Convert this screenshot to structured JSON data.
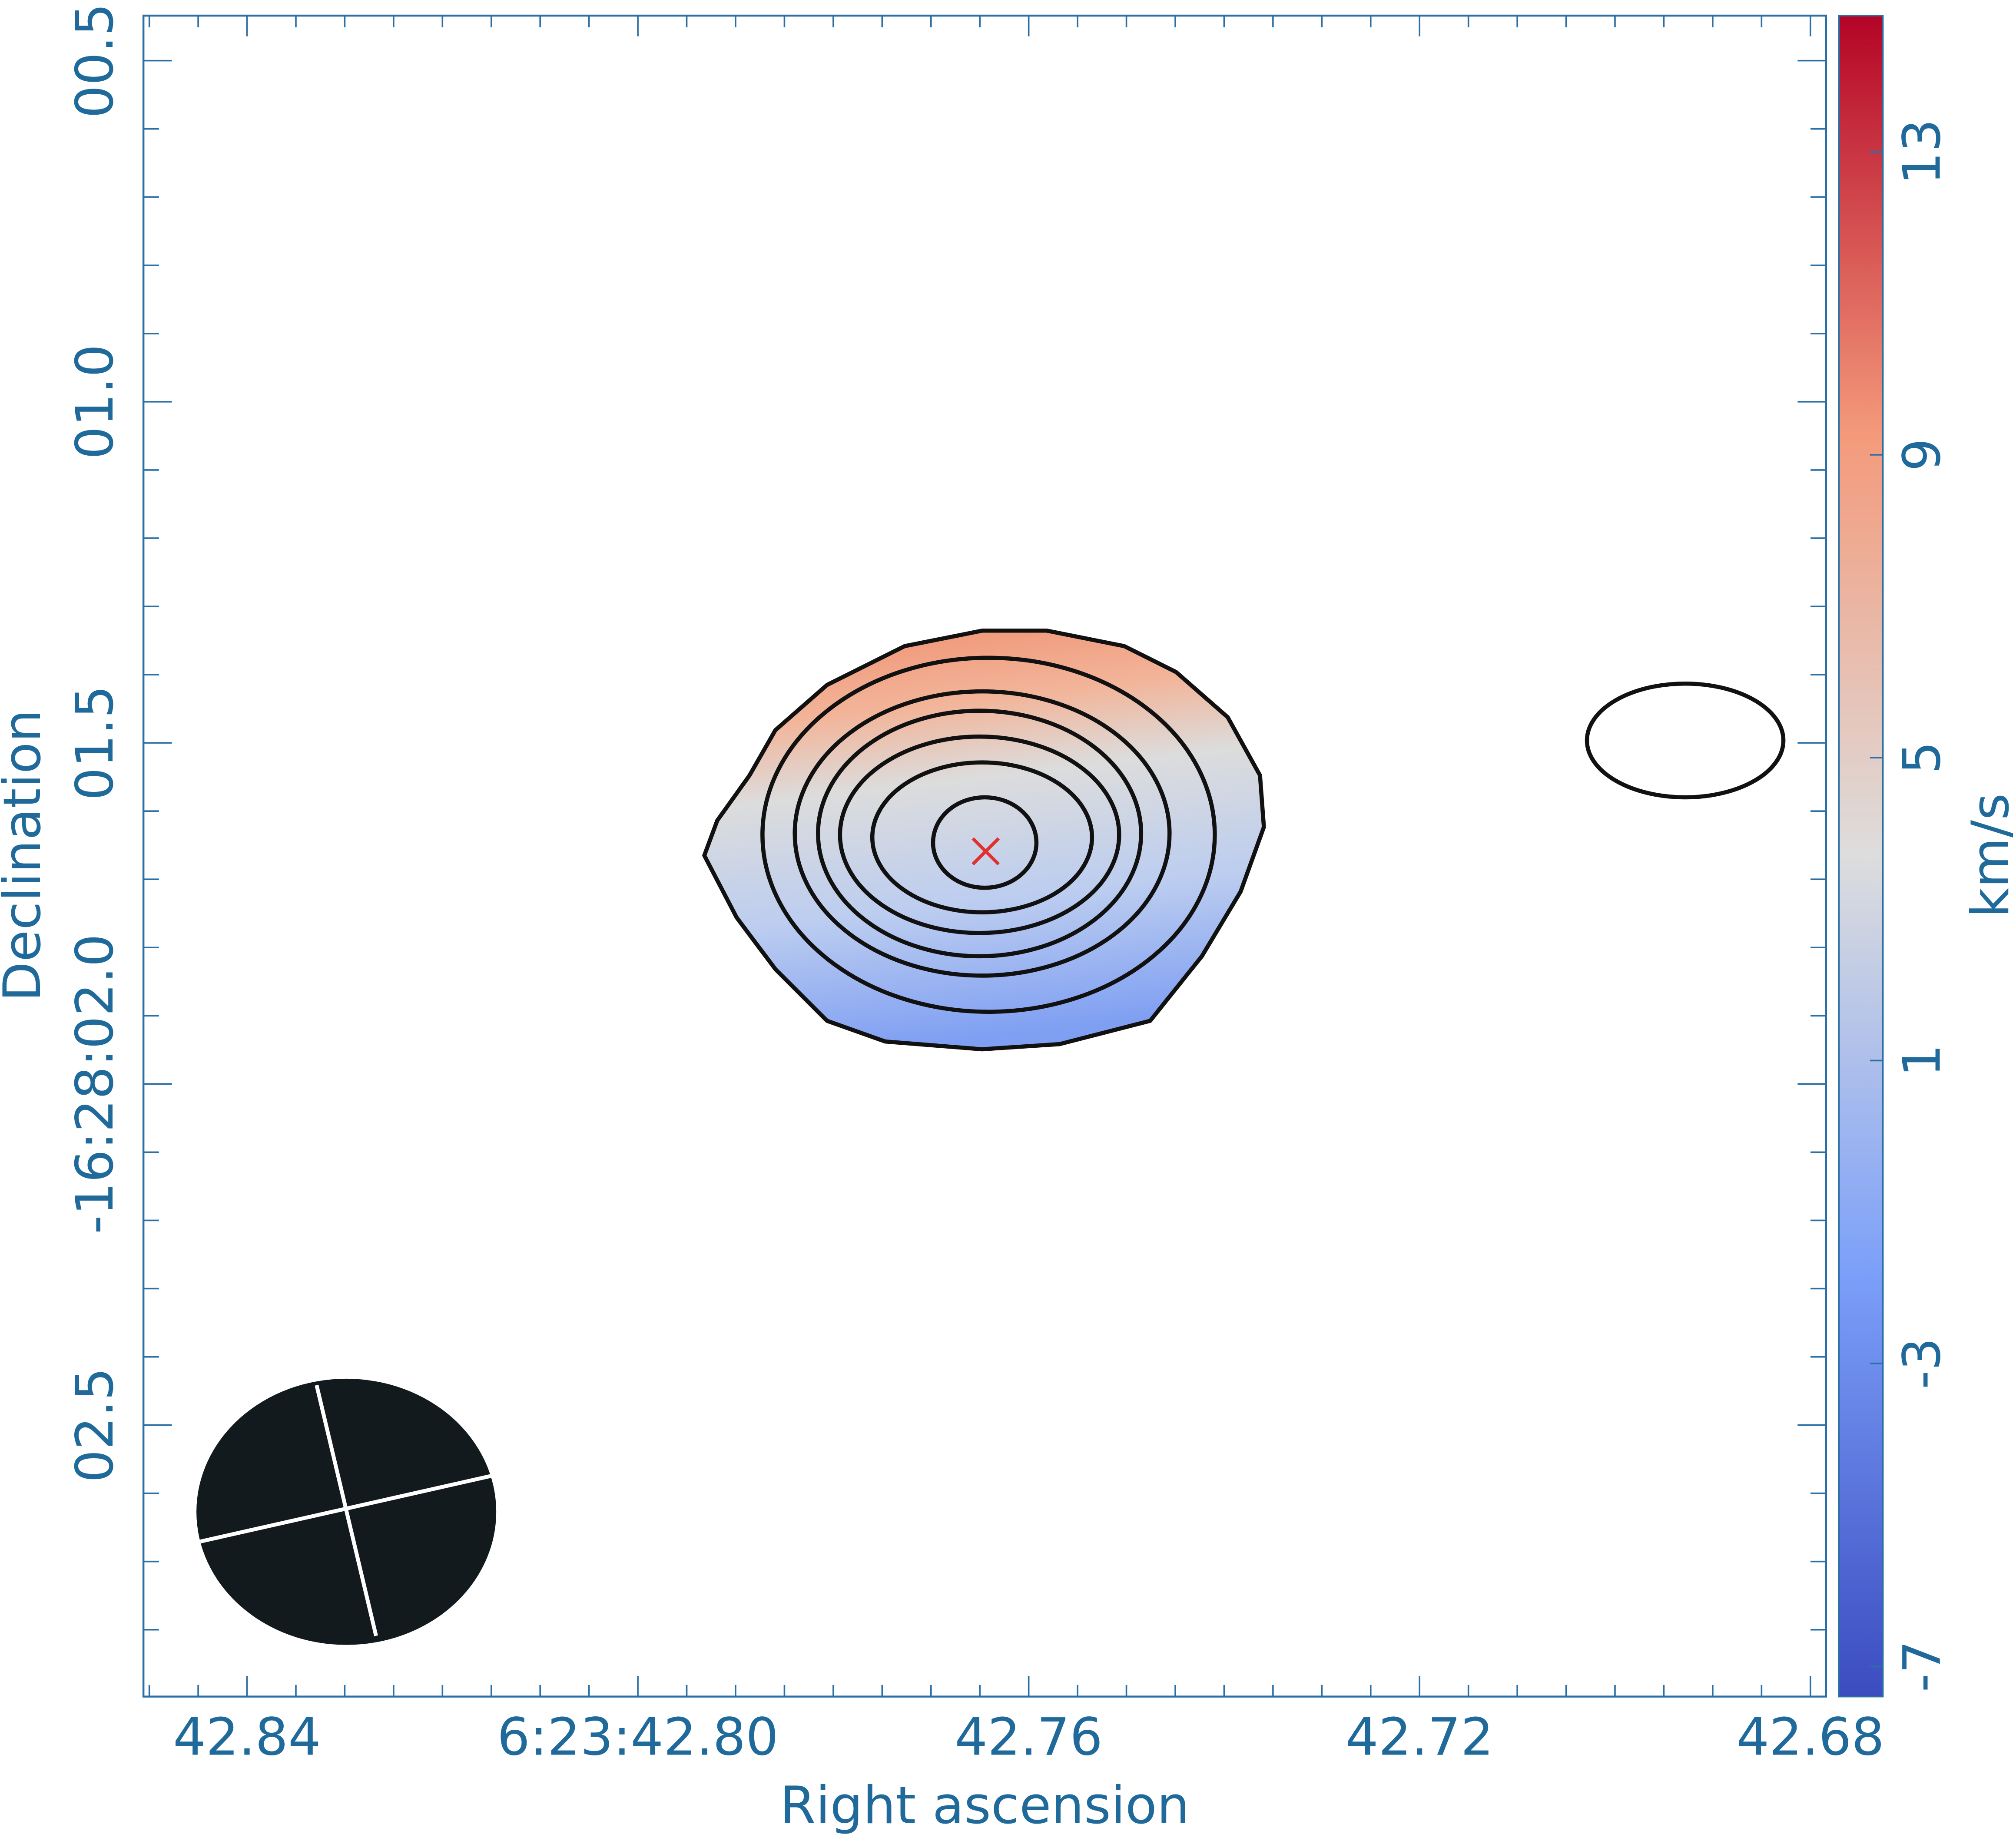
{
  "chart_data": {
    "type": "image",
    "x_label": "Right ascension",
    "y_label": "Declination",
    "xlim": [
      42.8506,
      42.6784
    ],
    "xticks": [
      42.84,
      {
        "value": 42.8,
        "label": "6:23:42.80"
      },
      42.76,
      42.72,
      42.68
    ],
    "ylim": [
      0.434,
      2.898
    ],
    "yticks": [
      {
        "value": 0.5,
        "label": "00.5"
      },
      {
        "value": 1.0,
        "label": "01.0"
      },
      {
        "value": 1.5,
        "label": "01.5"
      },
      {
        "value": 2.0,
        "label": "-16:28:02.0"
      },
      {
        "value": 2.5,
        "label": "02.5"
      }
    ],
    "colorbar": {
      "label": "km/s",
      "lim": [
        -7.4,
        14.8
      ],
      "ticks": [
        -7,
        -3,
        1,
        5,
        9,
        13
      ]
    },
    "marker": {
      "x": 42.7644,
      "y": 1.659,
      "color": "#e03030"
    }
  }
}
